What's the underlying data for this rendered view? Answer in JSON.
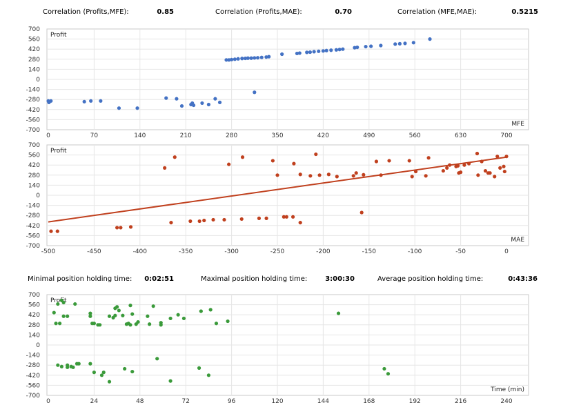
{
  "stats_top": [
    {
      "label": "Correlation (Profits,MFE):",
      "value": "0.85"
    },
    {
      "label": "Correlation (Profits,MAE):",
      "value": "0.70"
    },
    {
      "label": "Correlation (MFE,MAE):",
      "value": "0.5215"
    }
  ],
  "stats_mid": [
    {
      "label": "Minimal position holding time:",
      "value": "0:02:51"
    },
    {
      "label": "Maximal position holding time:",
      "value": "3:00:30"
    },
    {
      "label": "Average position holding time:",
      "value": "0:43:36"
    }
  ],
  "chart_data": [
    {
      "type": "scatter",
      "ylabel": "Profit",
      "xlabel": "MFE",
      "color": "#4472c4",
      "xlim": [
        0,
        700
      ],
      "ylim": [
        -700,
        700
      ],
      "xticks": [
        "0",
        "70",
        "140",
        "210",
        "280",
        "350",
        "420",
        "490",
        "560",
        "630",
        "700"
      ],
      "yticks": [
        "700",
        "560",
        "420",
        "280",
        "140",
        "0",
        "-140",
        "-280",
        "-420",
        "-560",
        "-700"
      ],
      "points": [
        [
          0,
          -300
        ],
        [
          1,
          -320
        ],
        [
          4,
          -300
        ],
        [
          55,
          -310
        ],
        [
          65,
          -300
        ],
        [
          80,
          -300
        ],
        [
          108,
          -400
        ],
        [
          136,
          -400
        ],
        [
          180,
          -260
        ],
        [
          196,
          -270
        ],
        [
          204,
          -370
        ],
        [
          218,
          -350
        ],
        [
          222,
          -360
        ],
        [
          220,
          -330
        ],
        [
          235,
          -330
        ],
        [
          245,
          -350
        ],
        [
          255,
          -270
        ],
        [
          262,
          -320
        ],
        [
          272,
          270
        ],
        [
          276,
          270
        ],
        [
          280,
          275
        ],
        [
          285,
          280
        ],
        [
          290,
          285
        ],
        [
          296,
          290
        ],
        [
          301,
          292
        ],
        [
          305,
          295
        ],
        [
          310,
          295
        ],
        [
          315,
          298
        ],
        [
          320,
          300
        ],
        [
          326,
          305
        ],
        [
          333,
          310
        ],
        [
          337,
          315
        ],
        [
          315,
          -180
        ],
        [
          357,
          350
        ],
        [
          380,
          360
        ],
        [
          384,
          365
        ],
        [
          395,
          375
        ],
        [
          400,
          378
        ],
        [
          406,
          385
        ],
        [
          413,
          390
        ],
        [
          420,
          395
        ],
        [
          425,
          400
        ],
        [
          432,
          405
        ],
        [
          440,
          410
        ],
        [
          445,
          415
        ],
        [
          450,
          420
        ],
        [
          468,
          440
        ],
        [
          472,
          445
        ],
        [
          485,
          455
        ],
        [
          493,
          460
        ],
        [
          508,
          470
        ],
        [
          530,
          490
        ],
        [
          537,
          495
        ],
        [
          545,
          500
        ],
        [
          558,
          510
        ],
        [
          583,
          560
        ]
      ]
    },
    {
      "type": "scatter",
      "ylabel": "Profit",
      "xlabel": "MAE",
      "color": "#c0401e",
      "xlim": [
        -500,
        0
      ],
      "ylim": [
        -700,
        700
      ],
      "xticks": [
        "-500",
        "-450",
        "-400",
        "-350",
        "-300",
        "-250",
        "-200",
        "-150",
        "-100",
        "-50",
        "0"
      ],
      "yticks": [
        "700",
        "560",
        "420",
        "280",
        "140",
        "0",
        "-140",
        "-280",
        "-420",
        "-560",
        "-700"
      ],
      "trendline": [
        [
          -500,
          -370
        ],
        [
          0,
          530
        ]
      ],
      "points": [
        [
          -497,
          -500
        ],
        [
          -490,
          -500
        ],
        [
          -425,
          -450
        ],
        [
          -421,
          -450
        ],
        [
          -410,
          -440
        ],
        [
          -373,
          380
        ],
        [
          -362,
          530
        ],
        [
          -366,
          -380
        ],
        [
          -345,
          -360
        ],
        [
          -335,
          -360
        ],
        [
          -330,
          -350
        ],
        [
          -320,
          -340
        ],
        [
          -308,
          -340
        ],
        [
          -303,
          430
        ],
        [
          -289,
          -330
        ],
        [
          -288,
          530
        ],
        [
          -270,
          -320
        ],
        [
          -262,
          -320
        ],
        [
          -255,
          480
        ],
        [
          -250,
          280
        ],
        [
          -243,
          -300
        ],
        [
          -240,
          -300
        ],
        [
          -233,
          -300
        ],
        [
          -232,
          440
        ],
        [
          -208,
          570
        ],
        [
          -225,
          290
        ],
        [
          -225,
          -380
        ],
        [
          -214,
          270
        ],
        [
          -204,
          280
        ],
        [
          -194,
          290
        ],
        [
          -185,
          260
        ],
        [
          -167,
          270
        ],
        [
          -164,
          310
        ],
        [
          -156,
          285
        ],
        [
          -158,
          -240
        ],
        [
          -142,
          470
        ],
        [
          -137,
          280
        ],
        [
          -128,
          480
        ],
        [
          -106,
          480
        ],
        [
          -103,
          260
        ],
        [
          -99,
          330
        ],
        [
          -88,
          270
        ],
        [
          -85,
          520
        ],
        [
          -69,
          340
        ],
        [
          -65,
          380
        ],
        [
          -62,
          420
        ],
        [
          -55,
          400
        ],
        [
          -53,
          410
        ],
        [
          -52,
          310
        ],
        [
          -50,
          320
        ],
        [
          -46,
          420
        ],
        [
          -41,
          440
        ],
        [
          -32,
          580
        ],
        [
          -31,
          280
        ],
        [
          -27,
          470
        ],
        [
          -23,
          340
        ],
        [
          -20,
          310
        ],
        [
          -18,
          310
        ],
        [
          -13,
          260
        ],
        [
          -10,
          540
        ],
        [
          -7,
          380
        ],
        [
          -3,
          400
        ],
        [
          -2,
          330
        ],
        [
          0,
          540
        ]
      ]
    },
    {
      "type": "scatter",
      "ylabel": "Profit",
      "xlabel": "Time (min)",
      "color": "#3a9a3a",
      "xlim": [
        0,
        240
      ],
      "ylim": [
        -700,
        700
      ],
      "xticks": [
        "0",
        "24",
        "48",
        "72",
        "96",
        "120",
        "144",
        "168",
        "192",
        "216",
        "240"
      ],
      "yticks": [
        "700",
        "560",
        "420",
        "280",
        "140",
        "0",
        "-140",
        "-280",
        "-420",
        "-560",
        "-700"
      ],
      "points": [
        [
          3,
          450
        ],
        [
          4,
          300
        ],
        [
          5,
          570
        ],
        [
          5,
          -280
        ],
        [
          6,
          300
        ],
        [
          7,
          620
        ],
        [
          7,
          -300
        ],
        [
          8,
          400
        ],
        [
          8,
          590
        ],
        [
          10,
          400
        ],
        [
          10,
          -310
        ],
        [
          10,
          -280
        ],
        [
          12,
          -300
        ],
        [
          13,
          -310
        ],
        [
          14,
          570
        ],
        [
          15,
          -260
        ],
        [
          16,
          -260
        ],
        [
          22,
          440
        ],
        [
          22,
          400
        ],
        [
          22,
          -260
        ],
        [
          23,
          300
        ],
        [
          24,
          300
        ],
        [
          24,
          -380
        ],
        [
          26,
          280
        ],
        [
          27,
          280
        ],
        [
          28,
          -420
        ],
        [
          29,
          -380
        ],
        [
          32,
          400
        ],
        [
          32,
          -510
        ],
        [
          34,
          380
        ],
        [
          35,
          410
        ],
        [
          35,
          510
        ],
        [
          36,
          530
        ],
        [
          37,
          480
        ],
        [
          39,
          410
        ],
        [
          40,
          -330
        ],
        [
          41,
          290
        ],
        [
          42,
          300
        ],
        [
          43,
          280
        ],
        [
          43,
          550
        ],
        [
          44,
          -370
        ],
        [
          44,
          430
        ],
        [
          46,
          290
        ],
        [
          47,
          320
        ],
        [
          52,
          400
        ],
        [
          53,
          290
        ],
        [
          55,
          540
        ],
        [
          57,
          -190
        ],
        [
          59,
          310
        ],
        [
          59,
          280
        ],
        [
          64,
          370
        ],
        [
          64,
          -500
        ],
        [
          68,
          420
        ],
        [
          71,
          370
        ],
        [
          79,
          -320
        ],
        [
          80,
          470
        ],
        [
          84,
          -420
        ],
        [
          85,
          490
        ],
        [
          88,
          300
        ],
        [
          94,
          330
        ],
        [
          152,
          440
        ],
        [
          176,
          -330
        ],
        [
          178,
          -400
        ]
      ]
    }
  ]
}
